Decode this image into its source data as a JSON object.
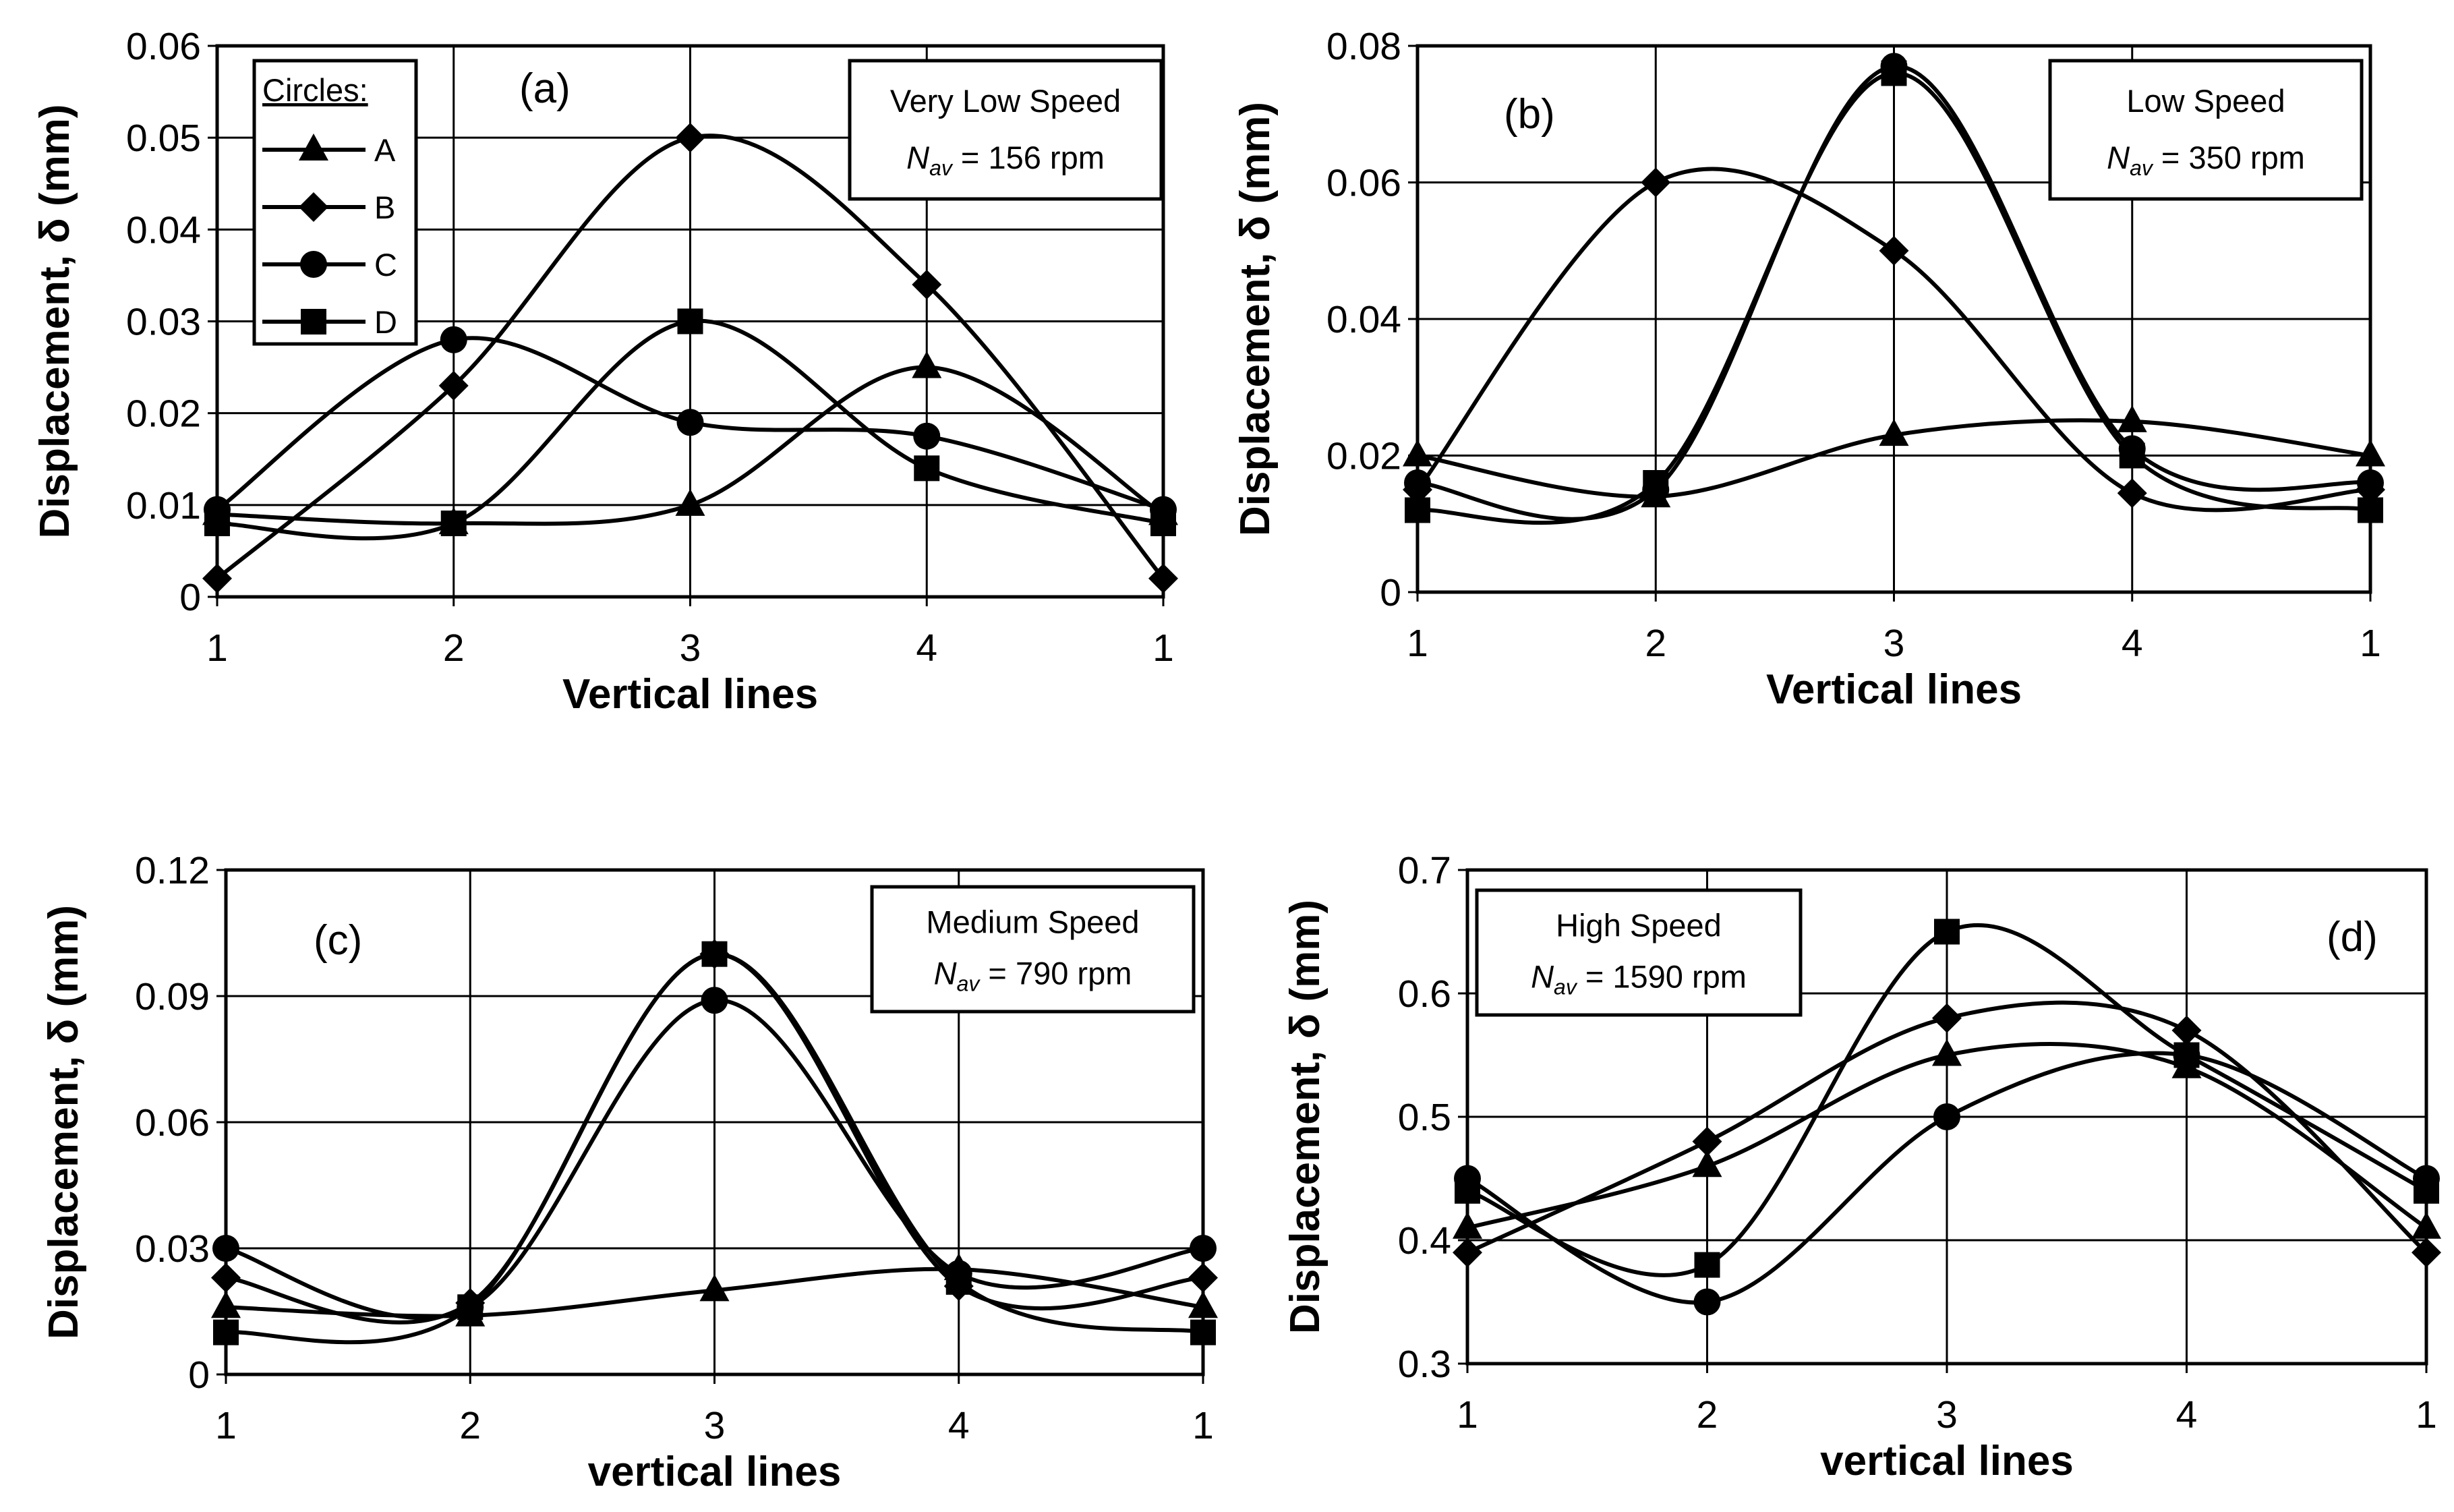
{
  "chart_data": [
    {
      "type": "line",
      "panel_label": "(a)",
      "info_box": {
        "line1": "Very Low Speed",
        "symbol": "N",
        "sub": "av",
        "value": "= 156 rpm"
      },
      "legend": {
        "title": "Circles:",
        "position": "top-left"
      },
      "xlabel": "Vertical lines",
      "ylabel": "Displacement, δ (mm)",
      "categories": [
        "1",
        "2",
        "3",
        "4",
        "1"
      ],
      "ylim": [
        0,
        0.06
      ],
      "yticks": [
        "0",
        "0.01",
        "0.02",
        "0.03",
        "0.04",
        "0.05",
        "0.06"
      ],
      "grid": true,
      "series": [
        {
          "name": "A",
          "marker": "triangle",
          "values": [
            0.009,
            0.008,
            0.01,
            0.025,
            0.009
          ]
        },
        {
          "name": "B",
          "marker": "diamond",
          "values": [
            0.002,
            0.023,
            0.05,
            0.034,
            0.002
          ]
        },
        {
          "name": "C",
          "marker": "circle",
          "values": [
            0.0095,
            0.028,
            0.019,
            0.0175,
            0.0095
          ]
        },
        {
          "name": "D",
          "marker": "square",
          "values": [
            0.008,
            0.008,
            0.03,
            0.014,
            0.008
          ]
        }
      ]
    },
    {
      "type": "line",
      "panel_label": "(b)",
      "info_box": {
        "line1": "Low Speed",
        "symbol": "N",
        "sub": "av",
        "value": "= 350 rpm"
      },
      "xlabel": "Vertical lines",
      "ylabel": "Displacement, δ (mm)",
      "categories": [
        "1",
        "2",
        "3",
        "4",
        "1"
      ],
      "ylim": [
        0,
        0.08
      ],
      "yticks": [
        "0",
        "0.02",
        "0.04",
        "0.06",
        "0.08"
      ],
      "grid": true,
      "series": [
        {
          "name": "A",
          "marker": "triangle",
          "values": [
            0.02,
            0.014,
            0.023,
            0.025,
            0.02
          ]
        },
        {
          "name": "B",
          "marker": "diamond",
          "values": [
            0.015,
            0.06,
            0.05,
            0.0145,
            0.015
          ]
        },
        {
          "name": "C",
          "marker": "circle",
          "values": [
            0.016,
            0.015,
            0.077,
            0.021,
            0.016
          ]
        },
        {
          "name": "D",
          "marker": "square",
          "values": [
            0.012,
            0.016,
            0.076,
            0.02,
            0.012
          ]
        }
      ]
    },
    {
      "type": "line",
      "panel_label": "(c)",
      "info_box": {
        "line1": "Medium Speed",
        "symbol": "N",
        "sub": "av",
        "value": "= 790 rpm"
      },
      "xlabel": "vertical lines",
      "ylabel": "Displacement, δ (mm)",
      "categories": [
        "1",
        "2",
        "3",
        "4",
        "1"
      ],
      "ylim": [
        0,
        0.12
      ],
      "yticks": [
        "0",
        "0.03",
        "0.06",
        "0.09",
        "0.12"
      ],
      "grid": true,
      "series": [
        {
          "name": "A",
          "marker": "triangle",
          "values": [
            0.016,
            0.014,
            0.02,
            0.025,
            0.016
          ]
        },
        {
          "name": "B",
          "marker": "diamond",
          "values": [
            0.023,
            0.017,
            0.1,
            0.021,
            0.023
          ]
        },
        {
          "name": "C",
          "marker": "circle",
          "values": [
            0.03,
            0.016,
            0.089,
            0.024,
            0.03
          ]
        },
        {
          "name": "D",
          "marker": "square",
          "values": [
            0.01,
            0.016,
            0.1,
            0.022,
            0.01
          ]
        }
      ]
    },
    {
      "type": "line",
      "panel_label": "(d)",
      "info_box": {
        "line1": "High Speed",
        "symbol": "N",
        "sub": "av",
        "value": "= 1590 rpm"
      },
      "xlabel": "vertical lines",
      "ylabel": "Displacement, δ (mm)",
      "categories": [
        "1",
        "2",
        "3",
        "4",
        "1"
      ],
      "ylim": [
        0.3,
        0.7
      ],
      "yticks": [
        "0.3",
        "0.4",
        "0.5",
        "0.6",
        "0.7"
      ],
      "grid": true,
      "series": [
        {
          "name": "A",
          "marker": "triangle",
          "values": [
            0.41,
            0.46,
            0.55,
            0.54,
            0.41
          ]
        },
        {
          "name": "B",
          "marker": "diamond",
          "values": [
            0.39,
            0.48,
            0.58,
            0.57,
            0.39
          ]
        },
        {
          "name": "C",
          "marker": "circle",
          "values": [
            0.45,
            0.35,
            0.5,
            0.55,
            0.45
          ]
        },
        {
          "name": "D",
          "marker": "square",
          "values": [
            0.44,
            0.38,
            0.65,
            0.55,
            0.44
          ]
        }
      ]
    }
  ]
}
